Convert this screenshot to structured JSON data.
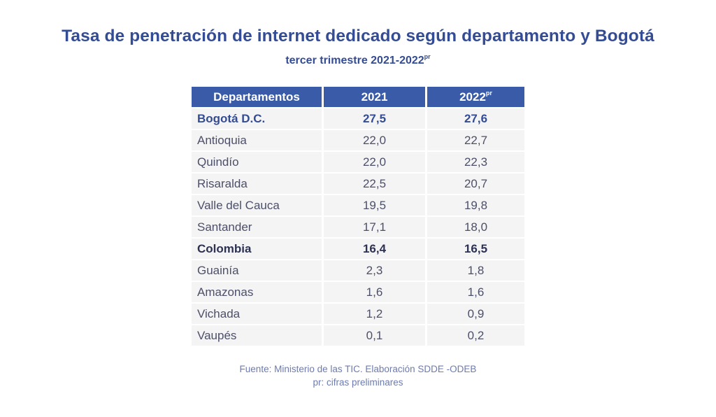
{
  "title": "Tasa de penetración de internet dedicado según departamento y Bogotá",
  "subtitle": {
    "text": "tercer trimestre 2021-2022",
    "superscript": "pr"
  },
  "chart_data": {
    "type": "table",
    "title": "Tasa de penetración de internet dedicado según departamento y Bogotá",
    "subtitle": "tercer trimestre 2021-2022pr",
    "columns": [
      "Departamentos",
      "2021",
      "2022pr"
    ],
    "header": {
      "col1": "Departamentos",
      "col2": "2021",
      "col3": "2022",
      "col3_superscript": "pr"
    },
    "rows": [
      {
        "name": "Bogotá D.C.",
        "v2021": "27,5",
        "v2022": "27,6",
        "highlight": "primary"
      },
      {
        "name": "Antioquia",
        "v2021": "22,0",
        "v2022": "22,7",
        "highlight": "none"
      },
      {
        "name": "Quindío",
        "v2021": "22,0",
        "v2022": "22,3",
        "highlight": "none"
      },
      {
        "name": "Risaralda",
        "v2021": "22,5",
        "v2022": "20,7",
        "highlight": "none"
      },
      {
        "name": "Valle del Cauca",
        "v2021": "19,5",
        "v2022": "19,8",
        "highlight": "none"
      },
      {
        "name": "Santander",
        "v2021": "17,1",
        "v2022": "18,0",
        "highlight": "none"
      },
      {
        "name": "Colombia",
        "v2021": "16,4",
        "v2022": "16,5",
        "highlight": "secondary"
      },
      {
        "name": "Guainía",
        "v2021": "2,3",
        "v2022": "1,8",
        "highlight": "none"
      },
      {
        "name": "Amazonas",
        "v2021": "1,6",
        "v2022": "1,6",
        "highlight": "none"
      },
      {
        "name": "Vichada",
        "v2021": "1,2",
        "v2022": "0,9",
        "highlight": "none"
      },
      {
        "name": "Vaupés",
        "v2021": "0,1",
        "v2022": "0,2",
        "highlight": "none"
      }
    ],
    "series": [
      {
        "name": "2021",
        "values": [
          27.5,
          22.0,
          22.0,
          22.5,
          19.5,
          17.1,
          16.4,
          2.3,
          1.6,
          1.2,
          0.1
        ]
      },
      {
        "name": "2022pr",
        "values": [
          27.6,
          22.7,
          22.3,
          20.7,
          19.8,
          18.0,
          16.5,
          1.8,
          1.6,
          0.9,
          0.2
        ]
      }
    ],
    "categories": [
      "Bogotá D.C.",
      "Antioquia",
      "Quindío",
      "Risaralda",
      "Valle del Cauca",
      "Santander",
      "Colombia",
      "Guainía",
      "Amazonas",
      "Vichada",
      "Vaupés"
    ]
  },
  "footer": {
    "source": "Fuente: Ministerio de las TIC. Elaboración SDDE -ODEB",
    "note": "pr: cifras preliminares"
  },
  "colors": {
    "title": "#344c94",
    "header_bg": "#3a5ca8",
    "cell_bg": "#f4f4f5",
    "text": "#4c4f68",
    "footer": "#6d7bb0"
  }
}
